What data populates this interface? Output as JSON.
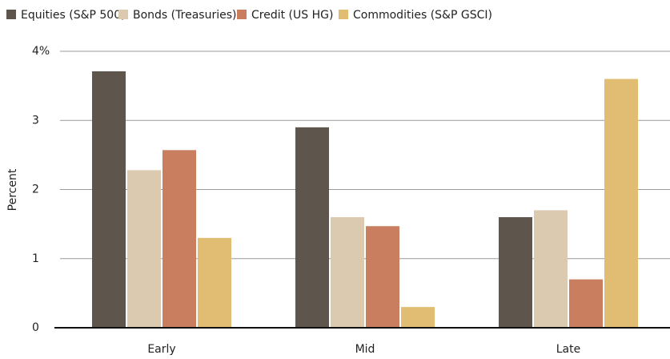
{
  "chart_data": {
    "type": "bar",
    "ylabel": "Percent",
    "categories": [
      "Early",
      "Mid",
      "Late"
    ],
    "series": [
      {
        "name": "Equities (S&P 500)",
        "color": "#5e554d",
        "values": [
          3.71,
          2.9,
          1.6
        ]
      },
      {
        "name": "Bonds (Treasuries)",
        "color": "#dccab0",
        "values": [
          2.28,
          1.6,
          1.7
        ]
      },
      {
        "name": "Credit (US HG)",
        "color": "#c97f5f",
        "values": [
          2.57,
          1.47,
          0.7
        ]
      },
      {
        "name": "Commodities (S&P GSCI)",
        "color": "#e0bd72",
        "values": [
          1.3,
          0.3,
          3.6
        ]
      }
    ],
    "ylim": [
      0,
      4
    ],
    "yticks": [
      0,
      1,
      2,
      3,
      {
        "value": 4,
        "label": "4%"
      }
    ],
    "grid": true
  }
}
